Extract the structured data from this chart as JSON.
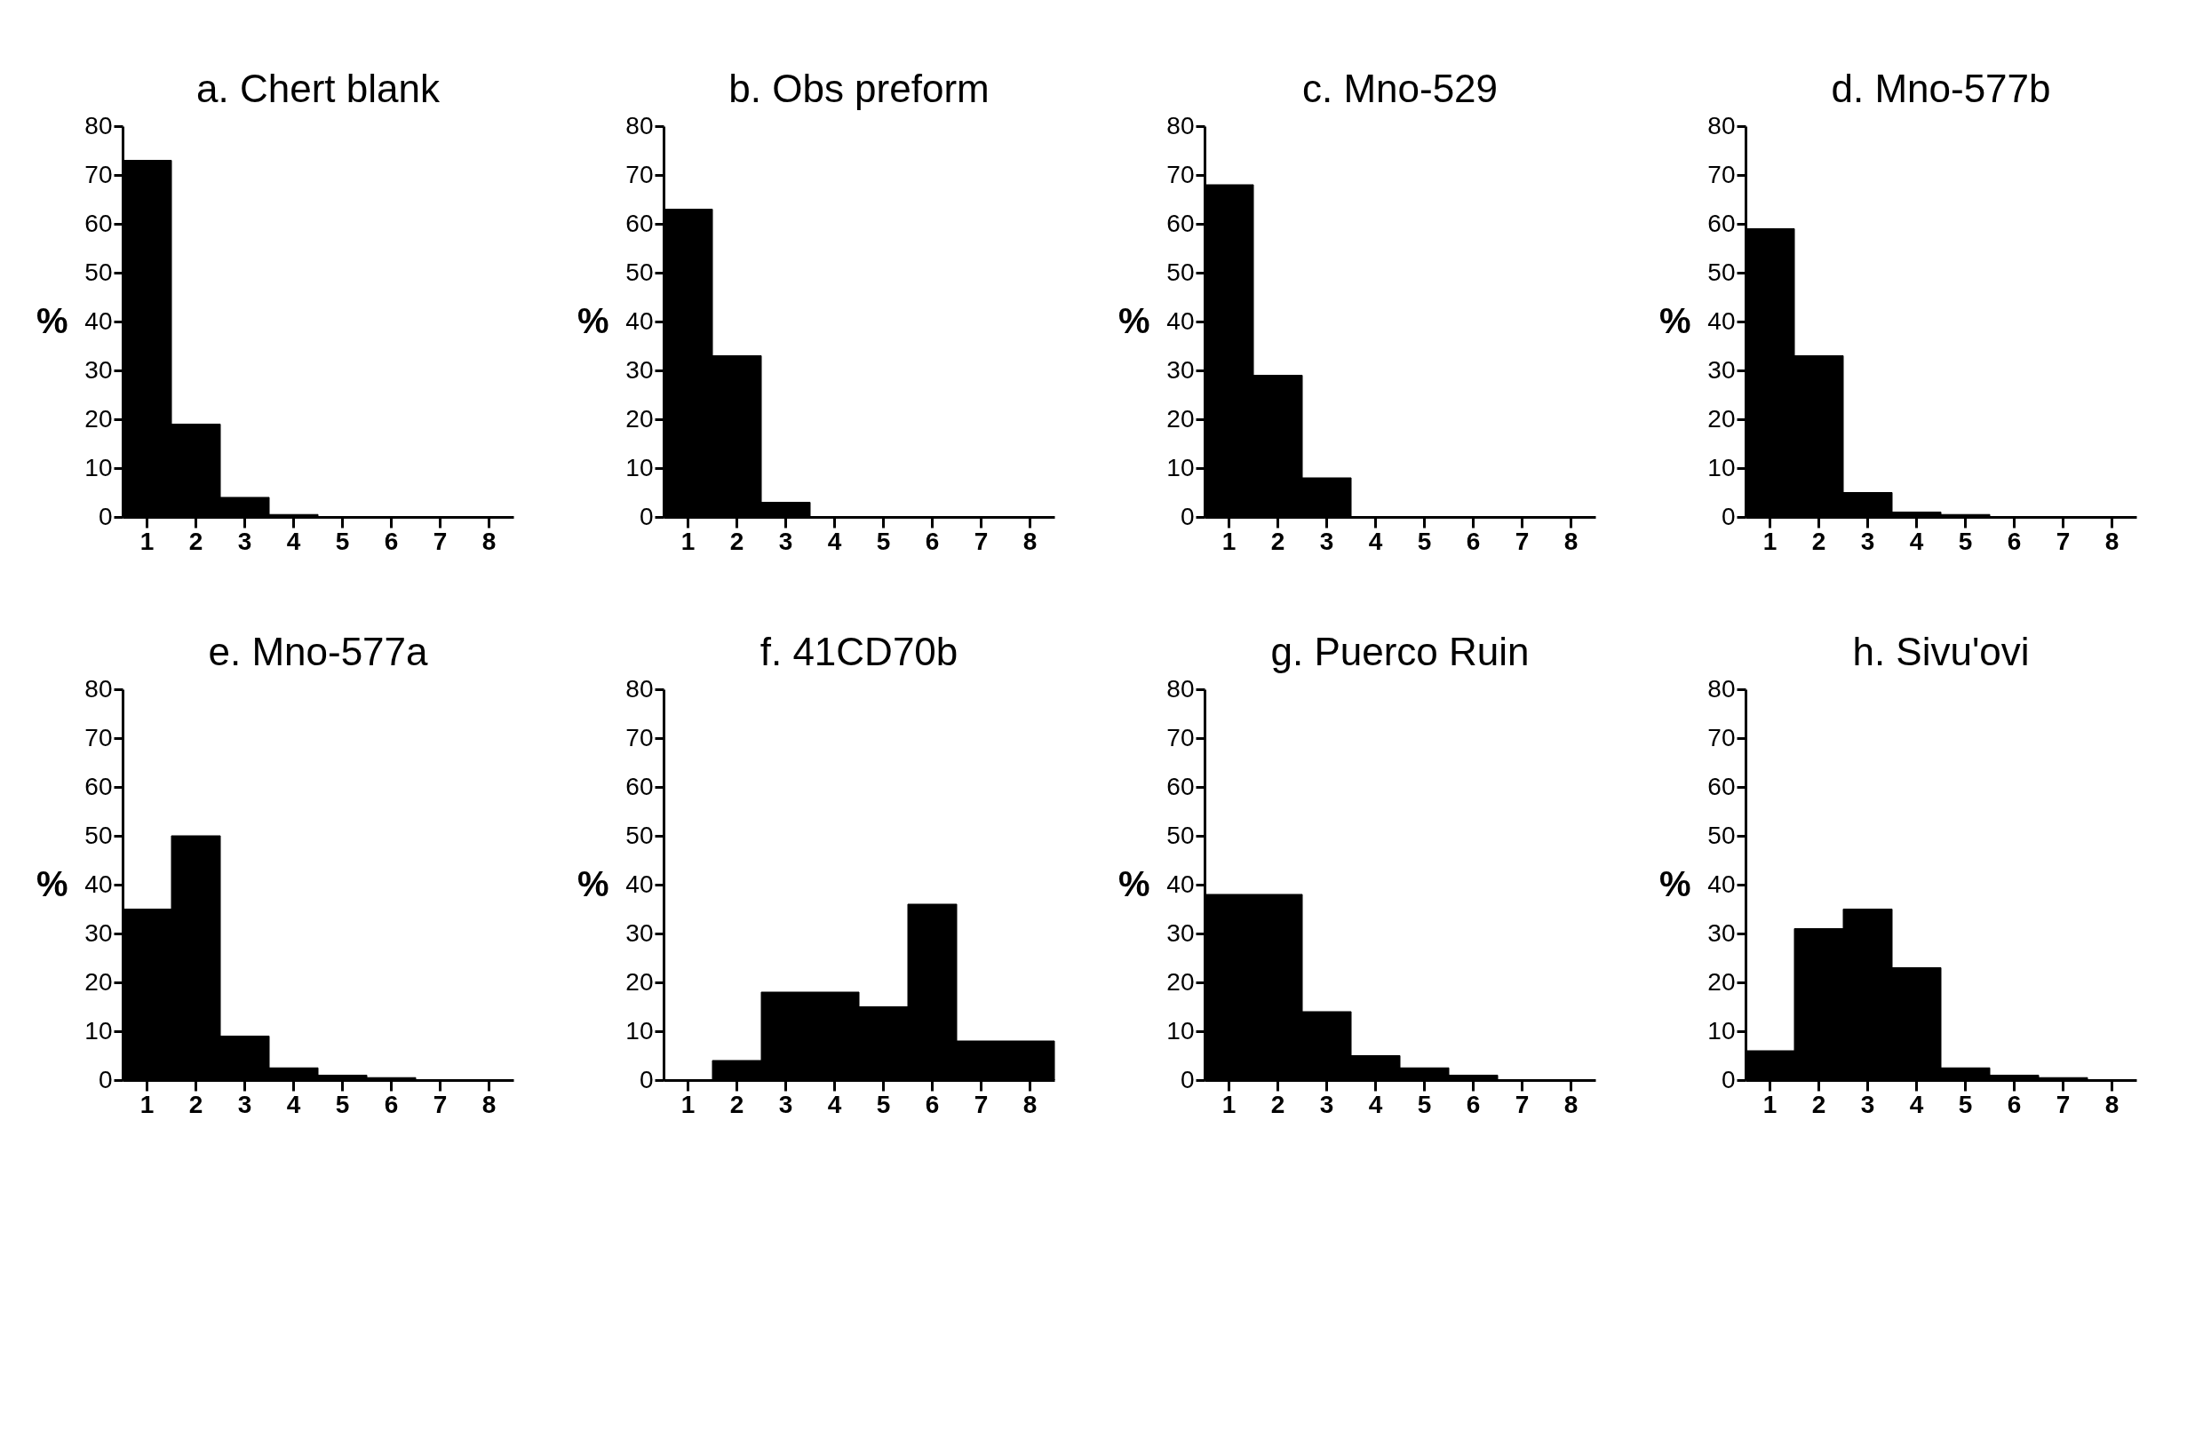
{
  "chart_data": [
    {
      "type": "bar",
      "title": "a. Chert blank",
      "ylabel": "%",
      "categories": [
        "1",
        "2",
        "3",
        "4",
        "5",
        "6",
        "7",
        "8"
      ],
      "values": [
        73,
        19,
        4,
        0.5,
        0,
        0,
        0,
        0
      ],
      "color": "#000000",
      "ylim": [
        0,
        80
      ],
      "yticks": [
        0,
        10,
        20,
        30,
        40,
        50,
        60,
        70,
        80
      ],
      "grid": false
    },
    {
      "type": "bar",
      "title": "b. Obs preform",
      "ylabel": "%",
      "categories": [
        "1",
        "2",
        "3",
        "4",
        "5",
        "6",
        "7",
        "8"
      ],
      "values": [
        63,
        33,
        3,
        0,
        0,
        0,
        0,
        0
      ],
      "color": "#000000",
      "ylim": [
        0,
        80
      ],
      "yticks": [
        0,
        10,
        20,
        30,
        40,
        50,
        60,
        70,
        80
      ],
      "grid": false
    },
    {
      "type": "bar",
      "title": "c. Mno-529",
      "ylabel": "%",
      "categories": [
        "1",
        "2",
        "3",
        "4",
        "5",
        "6",
        "7",
        "8"
      ],
      "values": [
        68,
        29,
        8,
        0,
        0,
        0,
        0,
        0
      ],
      "color": "#000000",
      "ylim": [
        0,
        80
      ],
      "yticks": [
        0,
        10,
        20,
        30,
        40,
        50,
        60,
        70,
        80
      ],
      "grid": false
    },
    {
      "type": "bar",
      "title": "d. Mno-577b",
      "ylabel": "%",
      "categories": [
        "1",
        "2",
        "3",
        "4",
        "5",
        "6",
        "7",
        "8"
      ],
      "values": [
        59,
        33,
        5,
        1,
        0.5,
        0,
        0,
        0
      ],
      "color": "#000000",
      "ylim": [
        0,
        80
      ],
      "yticks": [
        0,
        10,
        20,
        30,
        40,
        50,
        60,
        70,
        80
      ],
      "grid": false
    },
    {
      "type": "bar",
      "title": "e. Mno-577a",
      "ylabel": "%",
      "categories": [
        "1",
        "2",
        "3",
        "4",
        "5",
        "6",
        "7",
        "8"
      ],
      "values": [
        35,
        50,
        9,
        2.5,
        1,
        0.5,
        0,
        0
      ],
      "color": "#000000",
      "ylim": [
        0,
        80
      ],
      "yticks": [
        0,
        10,
        20,
        30,
        40,
        50,
        60,
        70,
        80
      ],
      "grid": false
    },
    {
      "type": "bar",
      "title": "f. 41CD70b",
      "ylabel": "%",
      "categories": [
        "1",
        "2",
        "3",
        "4",
        "5",
        "6",
        "7",
        "8"
      ],
      "values": [
        0,
        4,
        18,
        18,
        15,
        36,
        8,
        8
      ],
      "color": "#000000",
      "ylim": [
        0,
        80
      ],
      "yticks": [
        0,
        10,
        20,
        30,
        40,
        50,
        60,
        70,
        80
      ],
      "grid": false
    },
    {
      "type": "bar",
      "title": "g. Puerco Ruin",
      "ylabel": "%",
      "categories": [
        "1",
        "2",
        "3",
        "4",
        "5",
        "6",
        "7",
        "8"
      ],
      "values": [
        38,
        38,
        14,
        5,
        2.5,
        1,
        0,
        0
      ],
      "color": "#000000",
      "ylim": [
        0,
        80
      ],
      "yticks": [
        0,
        10,
        20,
        30,
        40,
        50,
        60,
        70,
        80
      ],
      "grid": false
    },
    {
      "type": "bar",
      "title": "h. Sivu'ovi",
      "ylabel": "%",
      "categories": [
        "1",
        "2",
        "3",
        "4",
        "5",
        "6",
        "7",
        "8"
      ],
      "values": [
        6,
        31,
        35,
        23,
        2.5,
        1,
        0.5,
        0
      ],
      "color": "#000000",
      "ylim": [
        0,
        80
      ],
      "yticks": [
        0,
        10,
        20,
        30,
        40,
        50,
        60,
        70,
        80
      ],
      "grid": false
    }
  ]
}
